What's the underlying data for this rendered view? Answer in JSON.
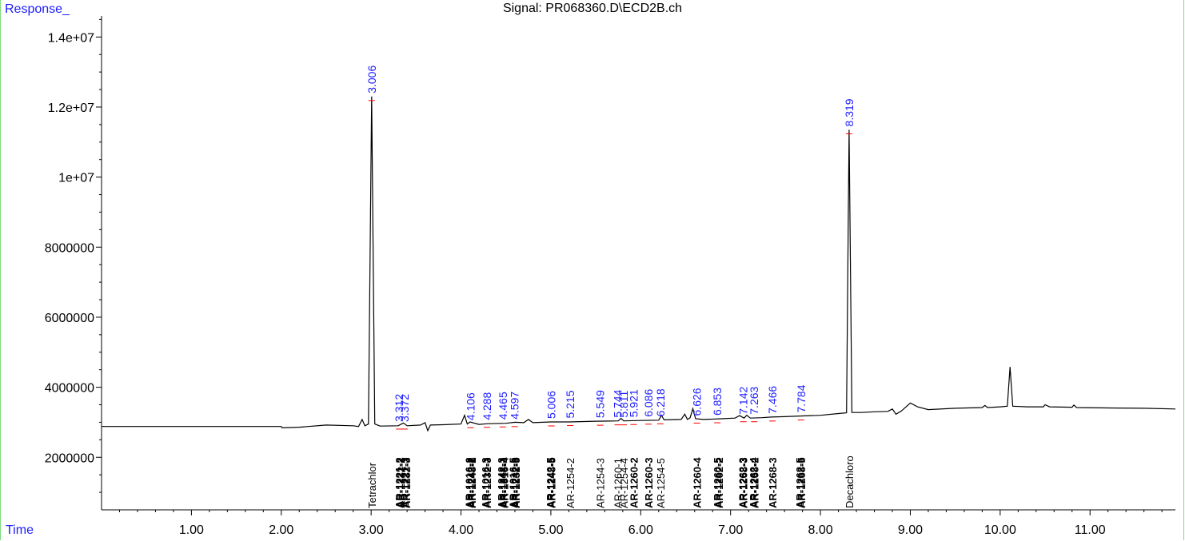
{
  "header": {
    "response_label": "Response_",
    "time_label": "Time",
    "signal_title": "Signal: PR068360.D\\ECD2B.ch"
  },
  "colors": {
    "trace": "#000000",
    "peak_label": "#1c1cff",
    "axis_label": "#1c1cff",
    "frame": "#7fdc7f",
    "baseline_marker": "#ff0000"
  },
  "chart_data": {
    "type": "line",
    "title": "Signal: PR068360.D\\ECD2B.ch",
    "xlabel": "Time",
    "ylabel": "Response_",
    "xlim": [
      0.0,
      11.95
    ],
    "ylim": [
      500000,
      14600000
    ],
    "x_ticks": [
      1.0,
      2.0,
      3.0,
      4.0,
      5.0,
      6.0,
      7.0,
      8.0,
      9.0,
      10.0,
      11.0
    ],
    "x_tick_labels": [
      "1.00",
      "2.00",
      "3.00",
      "4.00",
      "5.00",
      "6.00",
      "7.00",
      "8.00",
      "9.00",
      "10.00",
      "11.00"
    ],
    "y_ticks": [
      2000000,
      4000000,
      6000000,
      8000000,
      10000000,
      12000000,
      14000000
    ],
    "y_tick_labels": [
      "2000000",
      "4000000",
      "6000000",
      "8000000",
      "1e+07",
      "1.2e+07",
      "1.4e+07"
    ],
    "grid": false,
    "series": [
      {
        "points": [
          [
            0.0,
            2880000
          ],
          [
            2.0,
            2880000
          ],
          [
            2.01,
            2840000
          ],
          [
            2.2,
            2860000
          ],
          [
            2.5,
            2920000
          ],
          [
            2.8,
            2900000
          ],
          [
            2.86,
            2880000
          ],
          [
            2.9,
            3080000
          ],
          [
            2.93,
            2900000
          ],
          [
            2.97,
            2950000
          ],
          [
            3.006,
            12300000
          ],
          [
            3.04,
            2950000
          ],
          [
            3.1,
            2890000
          ],
          [
            3.3,
            2900000
          ],
          [
            3.36,
            2980000
          ],
          [
            3.4,
            2900000
          ],
          [
            3.55,
            2920000
          ],
          [
            3.6,
            2990000
          ],
          [
            3.63,
            2760000
          ],
          [
            3.66,
            2920000
          ],
          [
            3.8,
            2930000
          ],
          [
            4.0,
            2950000
          ],
          [
            4.04,
            3200000
          ],
          [
            4.07,
            2950000
          ],
          [
            4.1,
            3010000
          ],
          [
            4.2,
            2940000
          ],
          [
            4.3,
            2960000
          ],
          [
            4.5,
            2970000
          ],
          [
            4.6,
            3000000
          ],
          [
            4.7,
            2990000
          ],
          [
            4.75,
            3080000
          ],
          [
            4.8,
            2990000
          ],
          [
            5.0,
            3010000
          ],
          [
            5.2,
            3010000
          ],
          [
            5.5,
            3030000
          ],
          [
            5.75,
            3040000
          ],
          [
            5.78,
            3110000
          ],
          [
            5.81,
            3040000
          ],
          [
            6.0,
            3050000
          ],
          [
            6.2,
            3060000
          ],
          [
            6.23,
            3200000
          ],
          [
            6.26,
            3070000
          ],
          [
            6.45,
            3080000
          ],
          [
            6.49,
            3230000
          ],
          [
            6.52,
            3080000
          ],
          [
            6.55,
            3130000
          ],
          [
            6.58,
            3390000
          ],
          [
            6.61,
            3100000
          ],
          [
            6.7,
            3080000
          ],
          [
            6.9,
            3100000
          ],
          [
            7.05,
            3120000
          ],
          [
            7.1,
            3190000
          ],
          [
            7.15,
            3120000
          ],
          [
            7.18,
            3200000
          ],
          [
            7.22,
            3120000
          ],
          [
            7.35,
            3130000
          ],
          [
            7.45,
            3150000
          ],
          [
            7.6,
            3160000
          ],
          [
            7.8,
            3180000
          ],
          [
            8.0,
            3200000
          ],
          [
            8.2,
            3250000
          ],
          [
            8.29,
            3270000
          ],
          [
            8.319,
            11350000
          ],
          [
            8.35,
            3280000
          ],
          [
            8.45,
            3280000
          ],
          [
            8.6,
            3300000
          ],
          [
            8.75,
            3310000
          ],
          [
            8.8,
            3380000
          ],
          [
            8.84,
            3230000
          ],
          [
            8.9,
            3320000
          ],
          [
            9.0,
            3550000
          ],
          [
            9.08,
            3440000
          ],
          [
            9.2,
            3360000
          ],
          [
            9.5,
            3400000
          ],
          [
            9.8,
            3420000
          ],
          [
            9.83,
            3480000
          ],
          [
            9.86,
            3420000
          ],
          [
            10.0,
            3440000
          ],
          [
            10.08,
            3460000
          ],
          [
            10.11,
            4580000
          ],
          [
            10.14,
            3460000
          ],
          [
            10.3,
            3440000
          ],
          [
            10.48,
            3440000
          ],
          [
            10.5,
            3500000
          ],
          [
            10.55,
            3440000
          ],
          [
            10.8,
            3430000
          ],
          [
            10.82,
            3490000
          ],
          [
            10.85,
            3420000
          ],
          [
            11.2,
            3410000
          ],
          [
            11.6,
            3400000
          ],
          [
            11.95,
            3380000
          ]
        ]
      }
    ],
    "peak_labels": [
      {
        "x": 3.006,
        "y": 12300000,
        "label": "3.006"
      },
      {
        "x": 3.312,
        "y": 2920000,
        "label": "3.312"
      },
      {
        "x": 3.372,
        "y": 2920000,
        "label": "3.372"
      },
      {
        "x": 4.106,
        "y": 2960000,
        "label": "4.106"
      },
      {
        "x": 4.288,
        "y": 2970000,
        "label": "4.288"
      },
      {
        "x": 4.465,
        "y": 2980000,
        "label": "4.465"
      },
      {
        "x": 4.597,
        "y": 2990000,
        "label": "4.597"
      },
      {
        "x": 5.006,
        "y": 3010000,
        "label": "5.006"
      },
      {
        "x": 5.215,
        "y": 3020000,
        "label": "5.215"
      },
      {
        "x": 5.549,
        "y": 3030000,
        "label": "5.549"
      },
      {
        "x": 5.744,
        "y": 3040000,
        "label": "5.744"
      },
      {
        "x": 5.811,
        "y": 3040000,
        "label": "5.811"
      },
      {
        "x": 5.921,
        "y": 3050000,
        "label": "5.921"
      },
      {
        "x": 6.086,
        "y": 3060000,
        "label": "6.086"
      },
      {
        "x": 6.218,
        "y": 3070000,
        "label": "6.218"
      },
      {
        "x": 6.626,
        "y": 3090000,
        "label": "6.626"
      },
      {
        "x": 6.853,
        "y": 3100000,
        "label": "6.853"
      },
      {
        "x": 7.142,
        "y": 3130000,
        "label": "7.142"
      },
      {
        "x": 7.263,
        "y": 3130000,
        "label": "7.263"
      },
      {
        "x": 7.466,
        "y": 3150000,
        "label": "7.466"
      },
      {
        "x": 7.784,
        "y": 3180000,
        "label": "7.784"
      },
      {
        "x": 8.319,
        "y": 11350000,
        "label": "8.319"
      }
    ],
    "compound_labels": [
      {
        "x": 3.006,
        "label": "Tetrachlor"
      },
      {
        "x": 3.312,
        "label": "AR-1221-2"
      },
      {
        "x": 3.33,
        "label": "AR-1232-2"
      },
      {
        "x": 3.372,
        "label": "AR-1221-3"
      },
      {
        "x": 3.39,
        "label": "AR-1232-3"
      },
      {
        "x": 4.09,
        "label": "AR-1016-2"
      },
      {
        "x": 4.106,
        "label": "AR-1242-2"
      },
      {
        "x": 4.12,
        "label": "AR-1248-2"
      },
      {
        "x": 4.27,
        "label": "AR-1016-3"
      },
      {
        "x": 4.288,
        "label": "AR-1232-3"
      },
      {
        "x": 4.45,
        "label": "AR-1242-3"
      },
      {
        "x": 4.465,
        "label": "AR-1248-3"
      },
      {
        "x": 4.48,
        "label": "AR-1016-4"
      },
      {
        "x": 4.58,
        "label": "AR-1016-5"
      },
      {
        "x": 4.597,
        "label": "AR-1242-5"
      },
      {
        "x": 4.61,
        "label": "AR-1232-5"
      },
      {
        "x": 4.99,
        "label": "AR-1242-5"
      },
      {
        "x": 5.006,
        "label": "AR-1248-5"
      },
      {
        "x": 5.215,
        "label": "AR-1254-2"
      },
      {
        "x": 5.549,
        "label": "AR-1254-3"
      },
      {
        "x": 5.744,
        "label": "AR-1260-1"
      },
      {
        "x": 5.811,
        "label": "AR-1254-4"
      },
      {
        "x": 5.921,
        "label": "AR-1260-2"
      },
      {
        "x": 6.086,
        "label": "AR-1260-3"
      },
      {
        "x": 6.218,
        "label": "AR-1254-5"
      },
      {
        "x": 6.626,
        "label": "AR-1260-4"
      },
      {
        "x": 6.853,
        "label": "AR-1260-5"
      },
      {
        "x": 6.87,
        "label": "AR-1262-2"
      },
      {
        "x": 7.13,
        "label": "AR-1262-3"
      },
      {
        "x": 7.142,
        "label": "AR-1268-3"
      },
      {
        "x": 7.25,
        "label": "AR-1262-4"
      },
      {
        "x": 7.263,
        "label": "AR-1268-2"
      },
      {
        "x": 7.466,
        "label": "AR-1268-3"
      },
      {
        "x": 7.77,
        "label": "AR-1262-5"
      },
      {
        "x": 7.784,
        "label": "AR-1268-5"
      },
      {
        "x": 8.319,
        "label": "Decachloro"
      }
    ]
  }
}
